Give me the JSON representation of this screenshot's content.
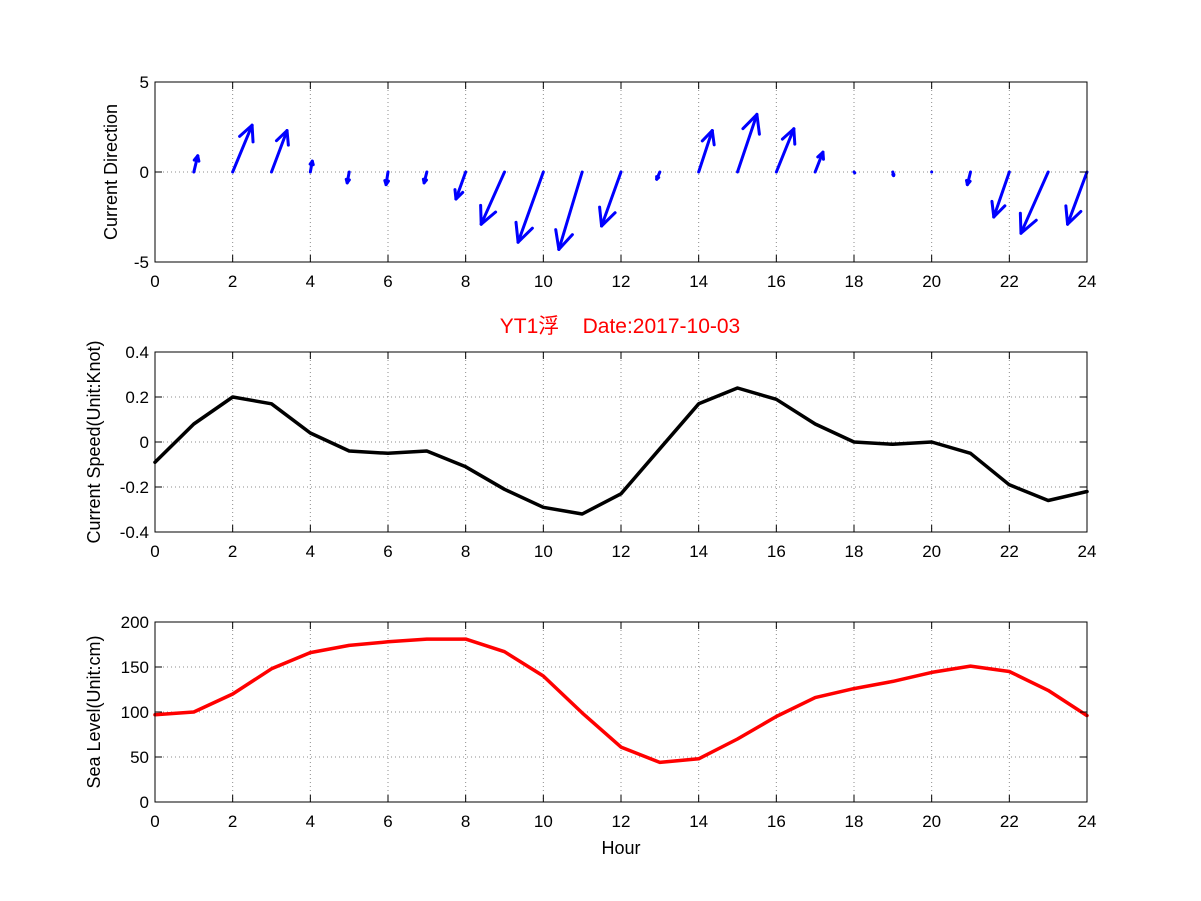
{
  "title": "YT1浮    Date:2017-10-03",
  "colors": {
    "title": "#ff0000",
    "direction": "#0000ff",
    "speed": "#000000",
    "sea_level": "#ff0000",
    "grid": "#8c8c8c",
    "axes": "#000000"
  },
  "chart_data": [
    {
      "type": "quiver",
      "ylabel": "Current Direction",
      "xlabel": "",
      "xlim": [
        0,
        24
      ],
      "ylim": [
        -5,
        5
      ],
      "xticks": [
        0,
        2,
        4,
        6,
        8,
        10,
        12,
        14,
        16,
        18,
        20,
        22,
        24
      ],
      "yticks": [
        -5,
        0,
        5
      ],
      "grid": true,
      "series": [
        {
          "x": [
            1,
            2,
            3,
            4,
            5,
            6,
            7,
            8,
            9,
            10,
            11,
            12,
            13,
            14,
            15,
            16,
            17,
            18,
            19,
            20,
            21,
            22,
            23,
            24
          ],
          "u": [
            0.1,
            0.5,
            0.4,
            0.05,
            -0.05,
            -0.05,
            -0.07,
            -0.25,
            -0.6,
            -0.65,
            -0.6,
            -0.5,
            -0.08,
            0.35,
            0.5,
            0.45,
            0.2,
            0.02,
            0.02,
            0.0,
            -0.08,
            -0.4,
            -0.7,
            -0.5
          ],
          "v": [
            0.9,
            2.6,
            2.3,
            0.6,
            -0.6,
            -0.7,
            -0.6,
            -1.5,
            -2.9,
            -3.9,
            -4.3,
            -3.0,
            -0.4,
            2.3,
            3.2,
            2.4,
            1.1,
            -0.05,
            -0.2,
            0.0,
            -0.7,
            -2.5,
            -3.4,
            -2.9
          ]
        }
      ]
    },
    {
      "type": "line",
      "ylabel": "Current Speed(Unit:Knot)",
      "xlabel": "",
      "xlim": [
        0,
        24
      ],
      "ylim": [
        -0.4,
        0.4
      ],
      "xticks": [
        0,
        2,
        4,
        6,
        8,
        10,
        12,
        14,
        16,
        18,
        20,
        22,
        24
      ],
      "yticks": [
        -0.4,
        -0.2,
        0,
        0.2,
        0.4
      ],
      "grid": true,
      "series": [
        {
          "x": [
            0,
            1,
            2,
            3,
            4,
            5,
            6,
            7,
            8,
            9,
            10,
            11,
            12,
            13,
            14,
            15,
            16,
            17,
            18,
            19,
            20,
            21,
            22,
            23,
            24
          ],
          "values": [
            -0.09,
            0.08,
            0.2,
            0.17,
            0.04,
            -0.04,
            -0.05,
            -0.04,
            -0.11,
            -0.21,
            -0.29,
            -0.32,
            -0.23,
            -0.03,
            0.17,
            0.24,
            0.19,
            0.08,
            0.0,
            -0.01,
            0.0,
            -0.05,
            -0.19,
            -0.26,
            -0.22
          ]
        }
      ]
    },
    {
      "type": "line",
      "ylabel": "Sea Level(Unit:cm)",
      "xlabel": "Hour",
      "xlim": [
        0,
        24
      ],
      "ylim": [
        0,
        200
      ],
      "xticks": [
        0,
        2,
        4,
        6,
        8,
        10,
        12,
        14,
        16,
        18,
        20,
        22,
        24
      ],
      "yticks": [
        0,
        50,
        100,
        150,
        200
      ],
      "grid": true,
      "series": [
        {
          "x": [
            0,
            1,
            2,
            3,
            4,
            5,
            6,
            7,
            8,
            9,
            10,
            11,
            12,
            13,
            14,
            15,
            16,
            17,
            18,
            19,
            20,
            21,
            22,
            23,
            24
          ],
          "values": [
            97,
            100,
            120,
            148,
            166,
            174,
            178,
            181,
            181,
            167,
            140,
            99,
            61,
            44,
            48,
            70,
            95,
            116,
            126,
            134,
            144,
            151,
            145,
            124,
            96
          ]
        }
      ]
    }
  ]
}
